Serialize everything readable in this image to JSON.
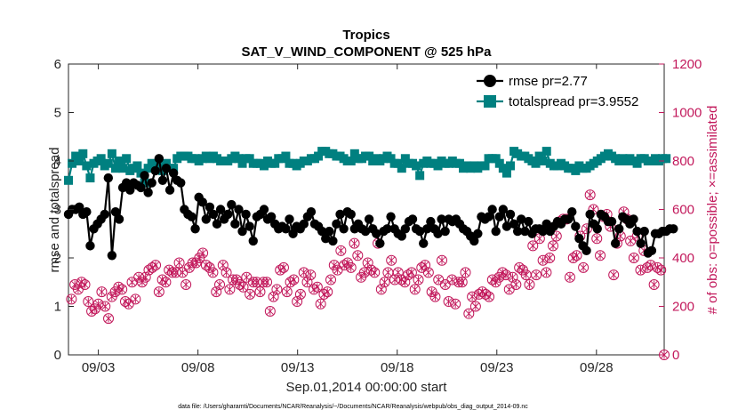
{
  "chart_data": {
    "type": "line",
    "title": "Tropics",
    "subtitle": "SAT_V_WIND_COMPONENT @ 525 hPa",
    "xlabel": "Sep.01,2014 00:00:00 start",
    "ylabel": "rmse and totalspread",
    "ylabel_right": "# of obs: o=possible; ×=assimilated",
    "footer": "data file: /Users/gharamti/Documents/NCAR/Reanalysis/~/Documents/NCAR/Reanalysis/webpub/obs_diag_output_2014-09.nc",
    "xlim": [
      1.5,
      31.4
    ],
    "ylim": [
      0,
      6
    ],
    "ylim_right": [
      0,
      1200
    ],
    "x_ticks": [
      3,
      8,
      13,
      18,
      23,
      28
    ],
    "x_tick_labels": [
      "09/03",
      "09/08",
      "09/13",
      "09/18",
      "09/23",
      "09/28"
    ],
    "y_ticks": [
      "0",
      "1",
      "2",
      "3",
      "4",
      "5",
      "6"
    ],
    "y_ticks_right": [
      "0",
      "200",
      "400",
      "600",
      "800",
      "1000",
      "1200"
    ],
    "legend_position": "top-right",
    "colors": {
      "rmse": "#000000",
      "spread": "#008080",
      "obs": "#c2185b"
    },
    "series": [
      {
        "name": "rmse pr=2.77",
        "values": [
          2.9,
          3.0,
          3.0,
          3.05,
          2.9,
          2.95,
          2.25,
          2.6,
          2.7,
          2.8,
          2.9,
          3.65,
          2.05,
          2.95,
          2.8,
          3.45,
          3.55,
          3.4,
          3.55,
          3.5,
          3.45,
          3.7,
          3.35,
          3.55,
          3.8,
          4.05,
          3.6,
          3.85,
          3.4,
          3.75,
          3.6,
          3.55,
          3.0,
          2.9,
          2.85,
          2.6,
          3.25,
          3.15,
          2.8,
          3.05,
          2.9,
          2.7,
          3.0,
          2.8,
          2.9,
          3.1,
          2.7,
          3.0,
          2.55,
          2.9,
          2.65,
          2.35,
          2.85,
          2.9,
          3.0,
          2.8,
          2.85,
          2.7,
          2.6,
          2.65,
          2.6,
          2.8,
          2.5,
          2.65,
          2.6,
          2.7,
          2.85,
          2.95,
          2.7,
          2.65,
          2.55,
          2.4,
          2.55,
          2.35,
          2.7,
          2.9,
          2.6,
          2.95,
          2.9,
          2.6,
          2.7,
          2.6,
          2.55,
          2.8,
          2.6,
          2.5,
          2.3,
          2.55,
          2.6,
          2.85,
          2.6,
          2.5,
          2.45,
          2.6,
          2.75,
          2.8,
          2.6,
          2.55,
          2.3,
          2.6,
          2.75,
          2.6,
          2.5,
          2.8,
          2.55,
          2.8,
          2.75,
          2.8,
          2.7,
          2.6,
          2.55,
          2.45,
          2.35,
          2.5,
          2.85,
          2.8,
          2.85,
          3.0,
          2.55,
          2.85,
          3.0,
          2.65,
          2.9,
          2.7,
          2.55,
          2.8,
          2.55,
          2.75,
          2.5,
          2.6,
          2.6,
          2.55,
          2.7,
          2.55,
          2.65,
          2.75,
          2.7,
          2.8,
          2.8,
          2.95,
          2.65,
          2.4,
          2.25,
          2.15,
          2.9,
          2.7,
          2.6,
          2.9,
          2.85,
          2.75,
          2.75,
          2.3,
          2.6,
          2.85,
          2.8,
          2.7,
          2.8,
          2.55,
          2.3,
          2.55,
          2.1,
          2.15,
          2.5,
          2.5,
          2.55,
          2.55,
          2.6,
          2.6
        ],
        "x_start": 1.5,
        "x_step": 0.1818
      },
      {
        "name": "totalspread pr=3.9552",
        "values": [
          3.6,
          3.95,
          4.1,
          4.0,
          4.15,
          3.9,
          3.65,
          3.95,
          4.0,
          4.05,
          3.9,
          3.95,
          4.15,
          3.85,
          4.0,
          3.85,
          4.05,
          3.8,
          3.85,
          3.9,
          3.75,
          3.55,
          3.85,
          3.95,
          3.9,
          3.9,
          3.8,
          3.95,
          3.85,
          3.85,
          4.05,
          4.1,
          4.1,
          4.1,
          4.05,
          4.05,
          4.0,
          4.05,
          4.1,
          4.05,
          4.1,
          4.05,
          4.0,
          4.0,
          4.0,
          4.05,
          4.1,
          4.05,
          3.95,
          4.05,
          4.05,
          3.95,
          3.95,
          3.95,
          3.9,
          4.0,
          3.95,
          3.95,
          4.05,
          4.05,
          4.1,
          3.95,
          3.95,
          3.9,
          3.95,
          4.0,
          4.0,
          4.05,
          4.05,
          4.1,
          4.2,
          4.2,
          4.15,
          4.15,
          4.1,
          4.1,
          4.05,
          4.0,
          4.0,
          4.15,
          4.05,
          4.05,
          4.1,
          4.1,
          4.0,
          4.05,
          4.0,
          4.05,
          4.1,
          4.05,
          3.95,
          3.95,
          3.85,
          4.05,
          3.95,
          3.95,
          3.9,
          3.7,
          3.95,
          4.0,
          3.95,
          3.95,
          3.9,
          4.0,
          3.95,
          3.95,
          4.0,
          3.95,
          3.95,
          3.85,
          3.9,
          3.85,
          3.9,
          3.85,
          3.9,
          3.9,
          4.05,
          4.05,
          4.05,
          3.95,
          3.85,
          3.75,
          3.9,
          4.2,
          4.15,
          4.1,
          4.1,
          4.05,
          4.0,
          3.95,
          4.1,
          4.0,
          4.2,
          3.95,
          3.9,
          3.9,
          3.95,
          3.9,
          3.85,
          3.85,
          3.8,
          3.9,
          3.85,
          3.85,
          3.9,
          3.95,
          4.0,
          4.05,
          4.1,
          4.15,
          4.1,
          4.05,
          4.0,
          4.05,
          4.0,
          4.05,
          4.0,
          3.95,
          4.05,
          4.05,
          4.0,
          4.0,
          4.05,
          4.0,
          4.05,
          4.05
        ],
        "x_start": 1.5,
        "x_step": 0.1818
      },
      {
        "name": "obs possible/assimilated",
        "axis": "right",
        "values": [
          230,
          290,
          270,
          300,
          290,
          220,
          180,
          190,
          210,
          260,
          200,
          150,
          240,
          260,
          280,
          270,
          220,
          210,
          300,
          230,
          320,
          300,
          320,
          350,
          360,
          370,
          260,
          310,
          300,
          350,
          340,
          340,
          380,
          340,
          290,
          360,
          380,
          380,
          400,
          420,
          370,
          360,
          340,
          260,
          290,
          370,
          340,
          270,
          310,
          310,
          290,
          280,
          320,
          250,
          300,
          300,
          260,
          300,
          300,
          180,
          240,
          270,
          350,
          360,
          260,
          300,
          310,
          220,
          250,
          340,
          300,
          330,
          270,
          280,
          210,
          250,
          260,
          310,
          370,
          350,
          430,
          370,
          380,
          360,
          460,
          410,
          320,
          340,
          380,
          350,
          340,
          460,
          270,
          300,
          340,
          390,
          310,
          340,
          310,
          300,
          330,
          340,
          270,
          310,
          360,
          370,
          340,
          260,
          240,
          310,
          390,
          290,
          220,
          310,
          210,
          300,
          300,
          340,
          170,
          240,
          200,
          250,
          260,
          250,
          240,
          310,
          300,
          320,
          340,
          330,
          270,
          320,
          290,
          360,
          350,
          330,
          290,
          450,
          330,
          480,
          390,
          340,
          400,
          450,
          490,
          550,
          560,
          560,
          320,
          400,
          410,
          490,
          360,
          520,
          660,
          600,
          480,
          410,
          570,
          580,
          530,
          330,
          460,
          490,
          590,
          560,
          470,
          400,
          490,
          350,
          430,
          360,
          370,
          290,
          360,
          350,
          0
        ]
      }
    ]
  }
}
